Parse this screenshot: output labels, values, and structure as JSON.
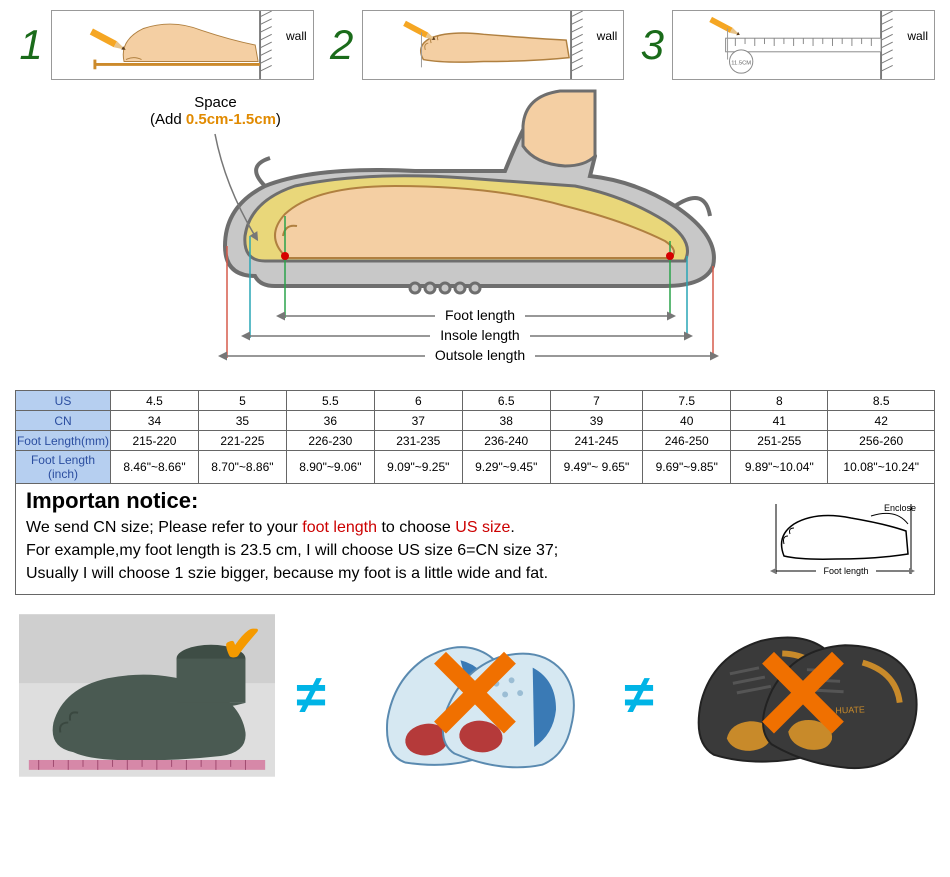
{
  "steps": {
    "numbers": [
      "1",
      "2",
      "3"
    ],
    "wall_label": "wall",
    "ruler_value": "11.5CM",
    "colors": {
      "number_color": "#1a6b1a",
      "pencil_body": "#f5a623",
      "pencil_tip": "#5a3b1a",
      "skin": "#f4cfa3",
      "skin_dark": "#d9a96a",
      "base_line": "#cc8a2b",
      "wall_hatch": "#7a7a7a",
      "ruler": "#888888"
    }
  },
  "shoe_diagram": {
    "space_label_line1": "Space",
    "space_label_line2_pre": "(Add ",
    "space_label_line2_emph": "0.5cm-1.5cm",
    "space_label_line2_post": ")",
    "labels": {
      "foot_length": "Foot length",
      "insole_length": "Insole length",
      "outsole_length": "Outsole length"
    },
    "colors": {
      "outline": "#6e6e6e",
      "sole_fill": "#c8c8c8",
      "inner_fill": "#e9d77a",
      "skin": "#f4cfa3",
      "dot_red": "#d60000",
      "line_green": "#2aa34a",
      "line_cyan": "#29a6b5",
      "line_red": "#d65a4a",
      "arrow_gray": "#777777",
      "text": "#000000",
      "emph": "#e18a00"
    }
  },
  "size_table": {
    "headers": [
      "US",
      "CN",
      "Foot Length(mm)",
      "Foot Length (inch)"
    ],
    "columns": [
      {
        "us": "4.5",
        "cn": "34",
        "mm": "215-220",
        "in": "8.46\"~8.66\""
      },
      {
        "us": "5",
        "cn": "35",
        "mm": "221-225",
        "in": "8.70\"~8.86\""
      },
      {
        "us": "5.5",
        "cn": "36",
        "mm": "226-230",
        "in": "8.90\"~9.06\""
      },
      {
        "us": "6",
        "cn": "37",
        "mm": "231-235",
        "in": "9.09\"~9.25\""
      },
      {
        "us": "6.5",
        "cn": "38",
        "mm": "236-240",
        "in": "9.29\"~9.45\""
      },
      {
        "us": "7",
        "cn": "39",
        "mm": "241-245",
        "in": "9.49\"~ 9.65\""
      },
      {
        "us": "7.5",
        "cn": "40",
        "mm": "246-250",
        "in": "9.69\"~9.85\""
      },
      {
        "us": "8",
        "cn": "41",
        "mm": "251-255",
        "in": "9.89\"~10.04\""
      },
      {
        "us": "8.5",
        "cn": "42",
        "mm": "256-260",
        "in": "10.08\"~10.24\""
      }
    ],
    "colors": {
      "header_bg": "#b6cff0",
      "header_text": "#2b4ea0",
      "border": "#666666"
    }
  },
  "notice": {
    "title": "Importan notice:",
    "line1_pre": "We send CN size; Please refer to your ",
    "line1_red1": "foot length",
    "line1_mid": " to choose ",
    "line1_red2": "US size",
    "line1_post": ".",
    "line2": "For example,my foot length is 23.5 cm, I will choose US size 6=CN size 37;",
    "line3": "Usually I will choose 1 szie bigger, because my foot is a little wide and fat.",
    "mini_labels": {
      "enclose": "Enclose",
      "foot_length": "Foot length"
    }
  },
  "compare": {
    "neq_symbol": "≠",
    "check_color": "#f59a00",
    "x_color": "#f07000",
    "neq_color": "#00b4e6",
    "foot_model": {
      "bg": "#dedede",
      "foot": "#4a5a52",
      "tape": "#d688a8"
    },
    "insole": {
      "bg": "#ffffff",
      "base": "#d6e8f2",
      "pad_blue": "#3a7ab5",
      "pad_red": "#b53a3a",
      "outline": "#5a8ab0"
    },
    "outsole": {
      "bg": "#ffffff",
      "base": "#3a3a3a",
      "accent": "#c88a2a",
      "text": "#c88a2a"
    }
  }
}
